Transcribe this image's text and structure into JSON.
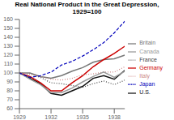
{
  "chart_data": {
    "type": "line",
    "title": "Real National Product in the Great Depression,\n1929=100",
    "x": [
      1929,
      1930,
      1931,
      1932,
      1933,
      1934,
      1935,
      1936,
      1937,
      1938,
      1939
    ],
    "xlim": [
      1929,
      1939
    ],
    "xticks": [
      1929,
      1932,
      1935,
      1938
    ],
    "ylim": [
      60,
      160
    ],
    "yticks": [
      60,
      70,
      80,
      90,
      100,
      110,
      120,
      130,
      140,
      150,
      160
    ],
    "grid": false,
    "legend": "right",
    "series": [
      {
        "name": "U.S.",
        "color": "#111111",
        "line_style": "solid",
        "values": [
          100,
          94,
          88,
          77,
          75,
          80,
          85,
          94,
          97,
          93,
          103
        ]
      },
      {
        "name": "Britain",
        "color": "#777777",
        "line_style": "solid",
        "values": [
          100,
          100,
          96,
          94,
          97,
          102,
          106,
          112,
          115,
          116,
          120
        ]
      },
      {
        "name": "Germany",
        "color": "#cc0000",
        "line_style": "solid",
        "values": [
          100,
          96,
          89,
          80,
          80,
          89,
          97,
          107,
          115,
          122,
          130
        ]
      },
      {
        "name": "France",
        "color": "#444444",
        "line_style": "dotted",
        "values": [
          100,
          99,
          95,
          89,
          88,
          86,
          84,
          88,
          91,
          87,
          92
        ]
      },
      {
        "name": "Italy",
        "color": "#cc8888",
        "line_style": "dotted",
        "values": [
          100,
          99,
          96,
          93,
          92,
          94,
          98,
          99,
          101,
          101,
          107
        ]
      },
      {
        "name": "Canada",
        "color": "#999999",
        "line_style": "solid",
        "values": [
          100,
          93,
          87,
          78,
          78,
          83,
          90,
          96,
          101,
          95,
          102
        ]
      },
      {
        "name": "Japan",
        "color": "#0000bb",
        "line_style": "dashed",
        "values": [
          100,
          95,
          97,
          101,
          109,
          113,
          119,
          126,
          134,
          145,
          158
        ]
      }
    ]
  }
}
